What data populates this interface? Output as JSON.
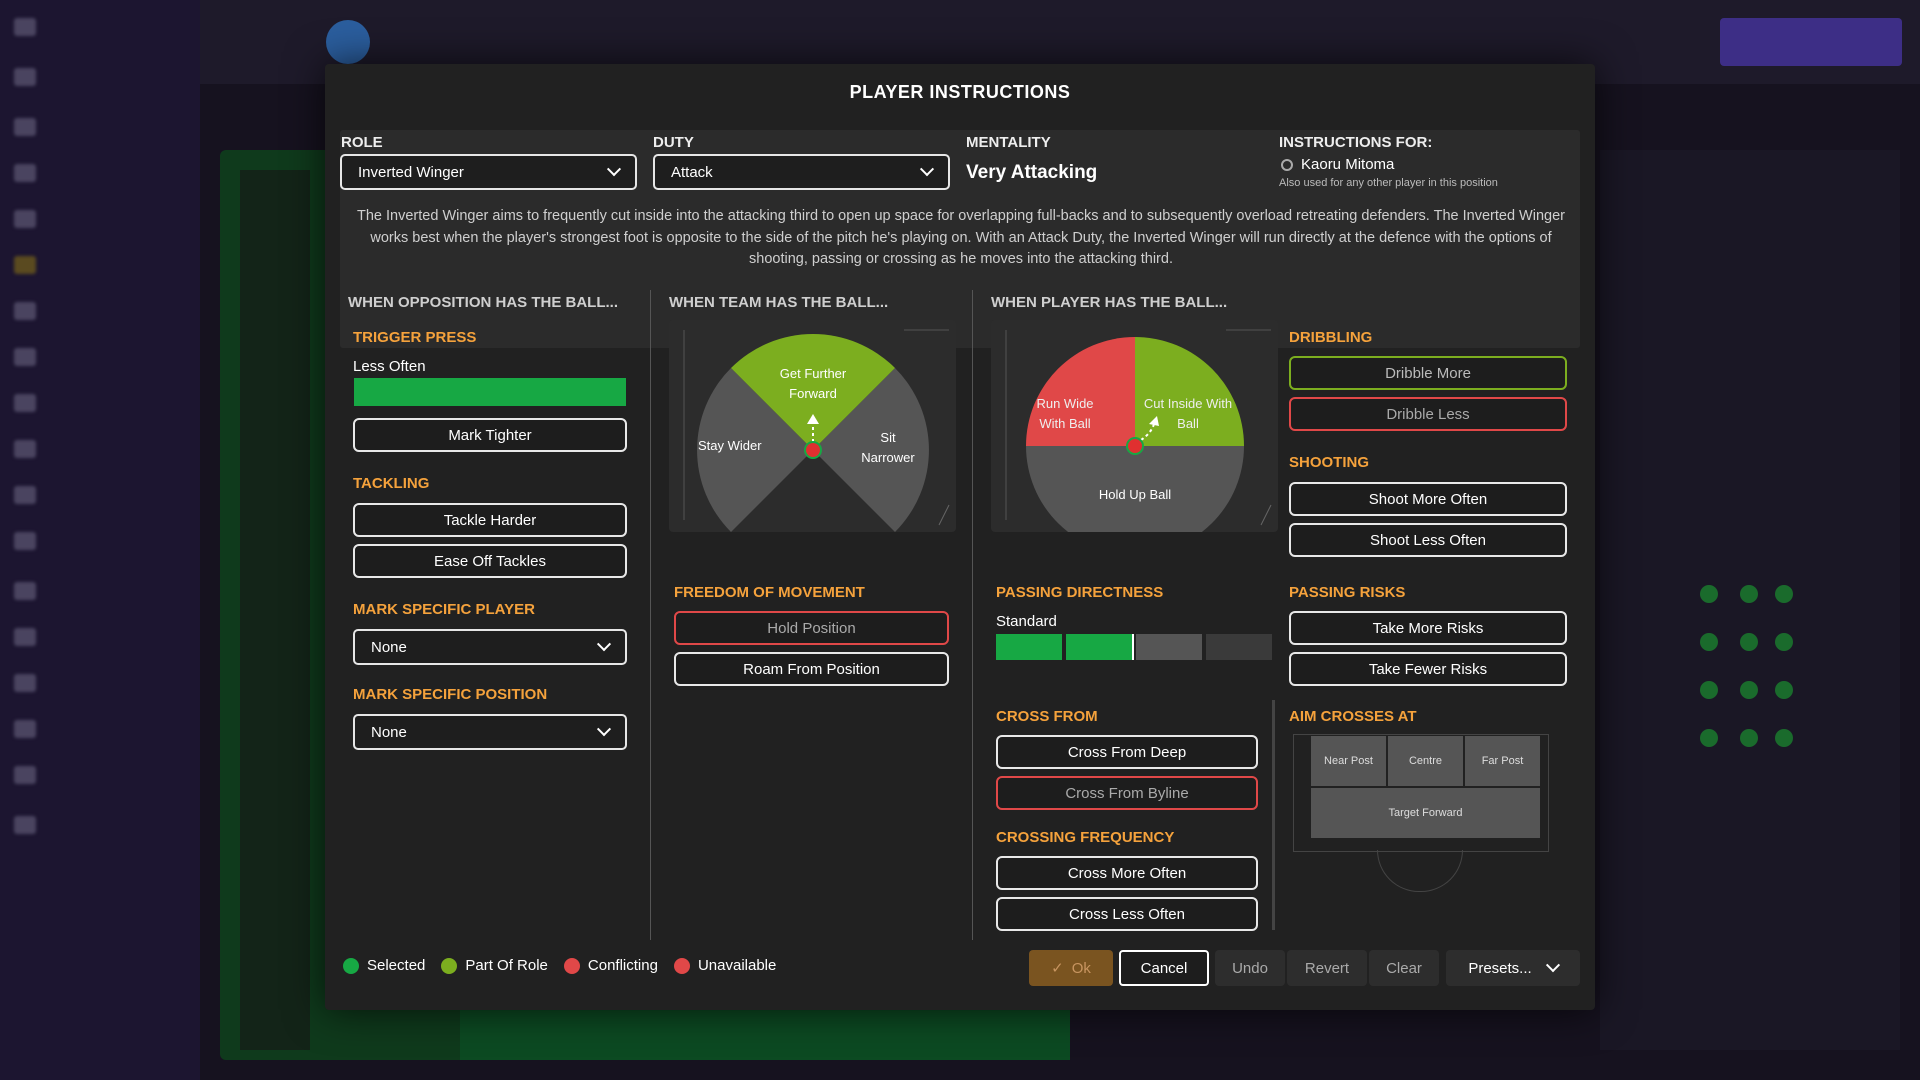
{
  "dialog": {
    "title": "PLAYER INSTRUCTIONS",
    "role_label": "ROLE",
    "role_value": "Inverted Winger",
    "duty_label": "DUTY",
    "duty_value": "Attack",
    "mentality_label": "MENTALITY",
    "mentality_value": "Very Attacking",
    "instructions_for_label": "INSTRUCTIONS FOR:",
    "player_name": "Kaoru Mitoma",
    "also_used": "Also used for any other player in this position",
    "description": "The Inverted Winger aims to frequently cut inside into the attacking third to open up space for overlapping full-backs and to subsequently overload retreating defenders. The Inverted Winger works best when the player's strongest foot is opposite to the side of the pitch he's playing on. With an Attack Duty, the Inverted Winger will run directly at the defence with the options of shooting, passing or crossing as he moves into the attacking third."
  },
  "opposition": {
    "header": "WHEN OPPOSITION HAS THE BALL...",
    "trigger_press": "TRIGGER PRESS",
    "trigger_press_value": "Less Often",
    "mark_tighter": "Mark Tighter",
    "tackling": "TACKLING",
    "tackle_harder": "Tackle Harder",
    "ease_off": "Ease Off Tackles",
    "mark_player": "MARK SPECIFIC PLAYER",
    "mark_player_value": "None",
    "mark_position": "MARK SPECIFIC POSITION",
    "mark_position_value": "None"
  },
  "team": {
    "header": "WHEN TEAM HAS THE BALL...",
    "get_further_forward": "Get Further Forward",
    "stay_wider": "Stay Wider",
    "sit_narrower": "Sit Narrower",
    "freedom": "FREEDOM OF MOVEMENT",
    "hold_position": "Hold Position",
    "roam": "Roam From Position"
  },
  "player": {
    "header": "WHEN PLAYER HAS THE BALL...",
    "run_wide": "Run Wide With Ball",
    "cut_inside": "Cut Inside With Ball",
    "hold_up": "Hold Up Ball",
    "passing_directness": "PASSING DIRECTNESS",
    "passing_directness_value": "Standard",
    "cross_from": "CROSS FROM",
    "cross_deep": "Cross From Deep",
    "cross_byline": "Cross From Byline",
    "crossing_frequency": "CROSSING FREQUENCY",
    "cross_more": "Cross More Often",
    "cross_less": "Cross Less Often",
    "dribbling": "DRIBBLING",
    "dribble_more": "Dribble More",
    "dribble_less": "Dribble Less",
    "shooting": "SHOOTING",
    "shoot_more": "Shoot More Often",
    "shoot_less": "Shoot Less Often",
    "passing_risks": "PASSING RISKS",
    "take_more": "Take More Risks",
    "take_fewer": "Take Fewer Risks",
    "aim_crosses": "AIM CROSSES AT",
    "near_post": "Near Post",
    "centre": "Centre",
    "far_post": "Far Post",
    "target_forward": "Target Forward"
  },
  "legend": {
    "selected": "Selected",
    "part_of_role": "Part Of Role",
    "conflicting": "Conflicting",
    "unavailable": "Unavailable"
  },
  "footer": {
    "ok": "Ok",
    "cancel": "Cancel",
    "undo": "Undo",
    "revert": "Revert",
    "clear": "Clear",
    "presets": "Presets..."
  },
  "colors": {
    "selected": "#17a844",
    "part_of_role": "#7cae1f",
    "conflicting": "#e04848",
    "accent_orange": "#f5a23c"
  }
}
